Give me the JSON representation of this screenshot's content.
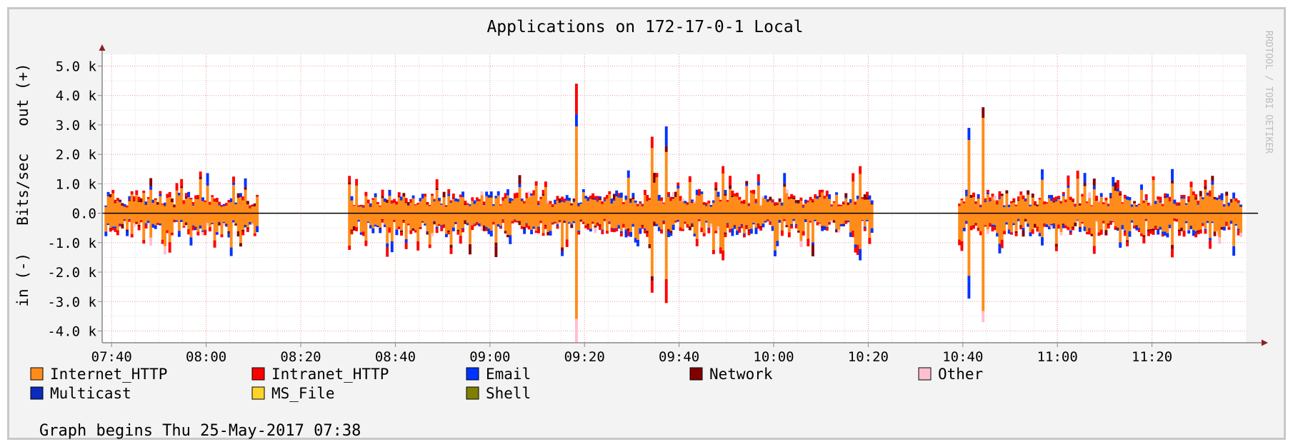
{
  "chart_data": {
    "type": "area",
    "title": "Applications on 172-17-0-1 Local",
    "ylabel": "in (-)   Bits/sec   out (+)",
    "watermark": "RRDTOOL / TOBI OETIKER",
    "footer": "Graph begins Thu 25-May-2017 07:38",
    "ylim": [
      -4400,
      5400
    ],
    "y_ticks": [
      5000,
      4000,
      3000,
      2000,
      1000,
      0,
      -1000,
      -2000,
      -3000,
      -4000
    ],
    "y_tick_labels": [
      "5.0 k",
      "4.0 k",
      "3.0 k",
      "2.0 k",
      "1.0 k",
      "0.0",
      "-1.0 k",
      "-2.0 k",
      "-3.0 k",
      "-4.0 k"
    ],
    "x_start": "07:38",
    "x_end": "11:40",
    "x_ticks": [
      "07:40",
      "08:00",
      "08:20",
      "08:40",
      "09:00",
      "09:20",
      "09:40",
      "10:00",
      "10:20",
      "10:40",
      "11:00",
      "11:20"
    ],
    "gaps": [
      [
        "08:11",
        "08:30"
      ],
      [
        "10:21",
        "10:39"
      ]
    ],
    "grid": true,
    "legend_position": "bottom",
    "series": [
      {
        "name": "Internet_HTTP",
        "color": "#ff8c1a"
      },
      {
        "name": "Intranet_HTTP",
        "color": "#ff0000"
      },
      {
        "name": "Email",
        "color": "#0033ff"
      },
      {
        "name": "Network",
        "color": "#800000"
      },
      {
        "name": "Other",
        "color": "#ffbfcf"
      },
      {
        "name": "Multicast",
        "color": "#0a2bbb"
      },
      {
        "name": "MS_File",
        "color": "#ffd42a"
      },
      {
        "name": "Shell",
        "color": "#808000"
      }
    ],
    "spikes": [
      {
        "time": "09:18",
        "out": 4400,
        "in": -4400
      },
      {
        "time": "09:34",
        "out": 2600,
        "in": -2700
      },
      {
        "time": "09:37",
        "out": 2950,
        "in": -3050
      },
      {
        "time": "09:49",
        "out": 1600,
        "in": -1600
      },
      {
        "time": "10:18",
        "out": 1600,
        "in": -1600
      },
      {
        "time": "10:41",
        "out": 2900,
        "in": -2900
      },
      {
        "time": "10:44",
        "out": 3600,
        "in": -3700
      },
      {
        "time": "11:24",
        "out": 1500,
        "in": -1500
      }
    ],
    "typical_level": 750
  }
}
